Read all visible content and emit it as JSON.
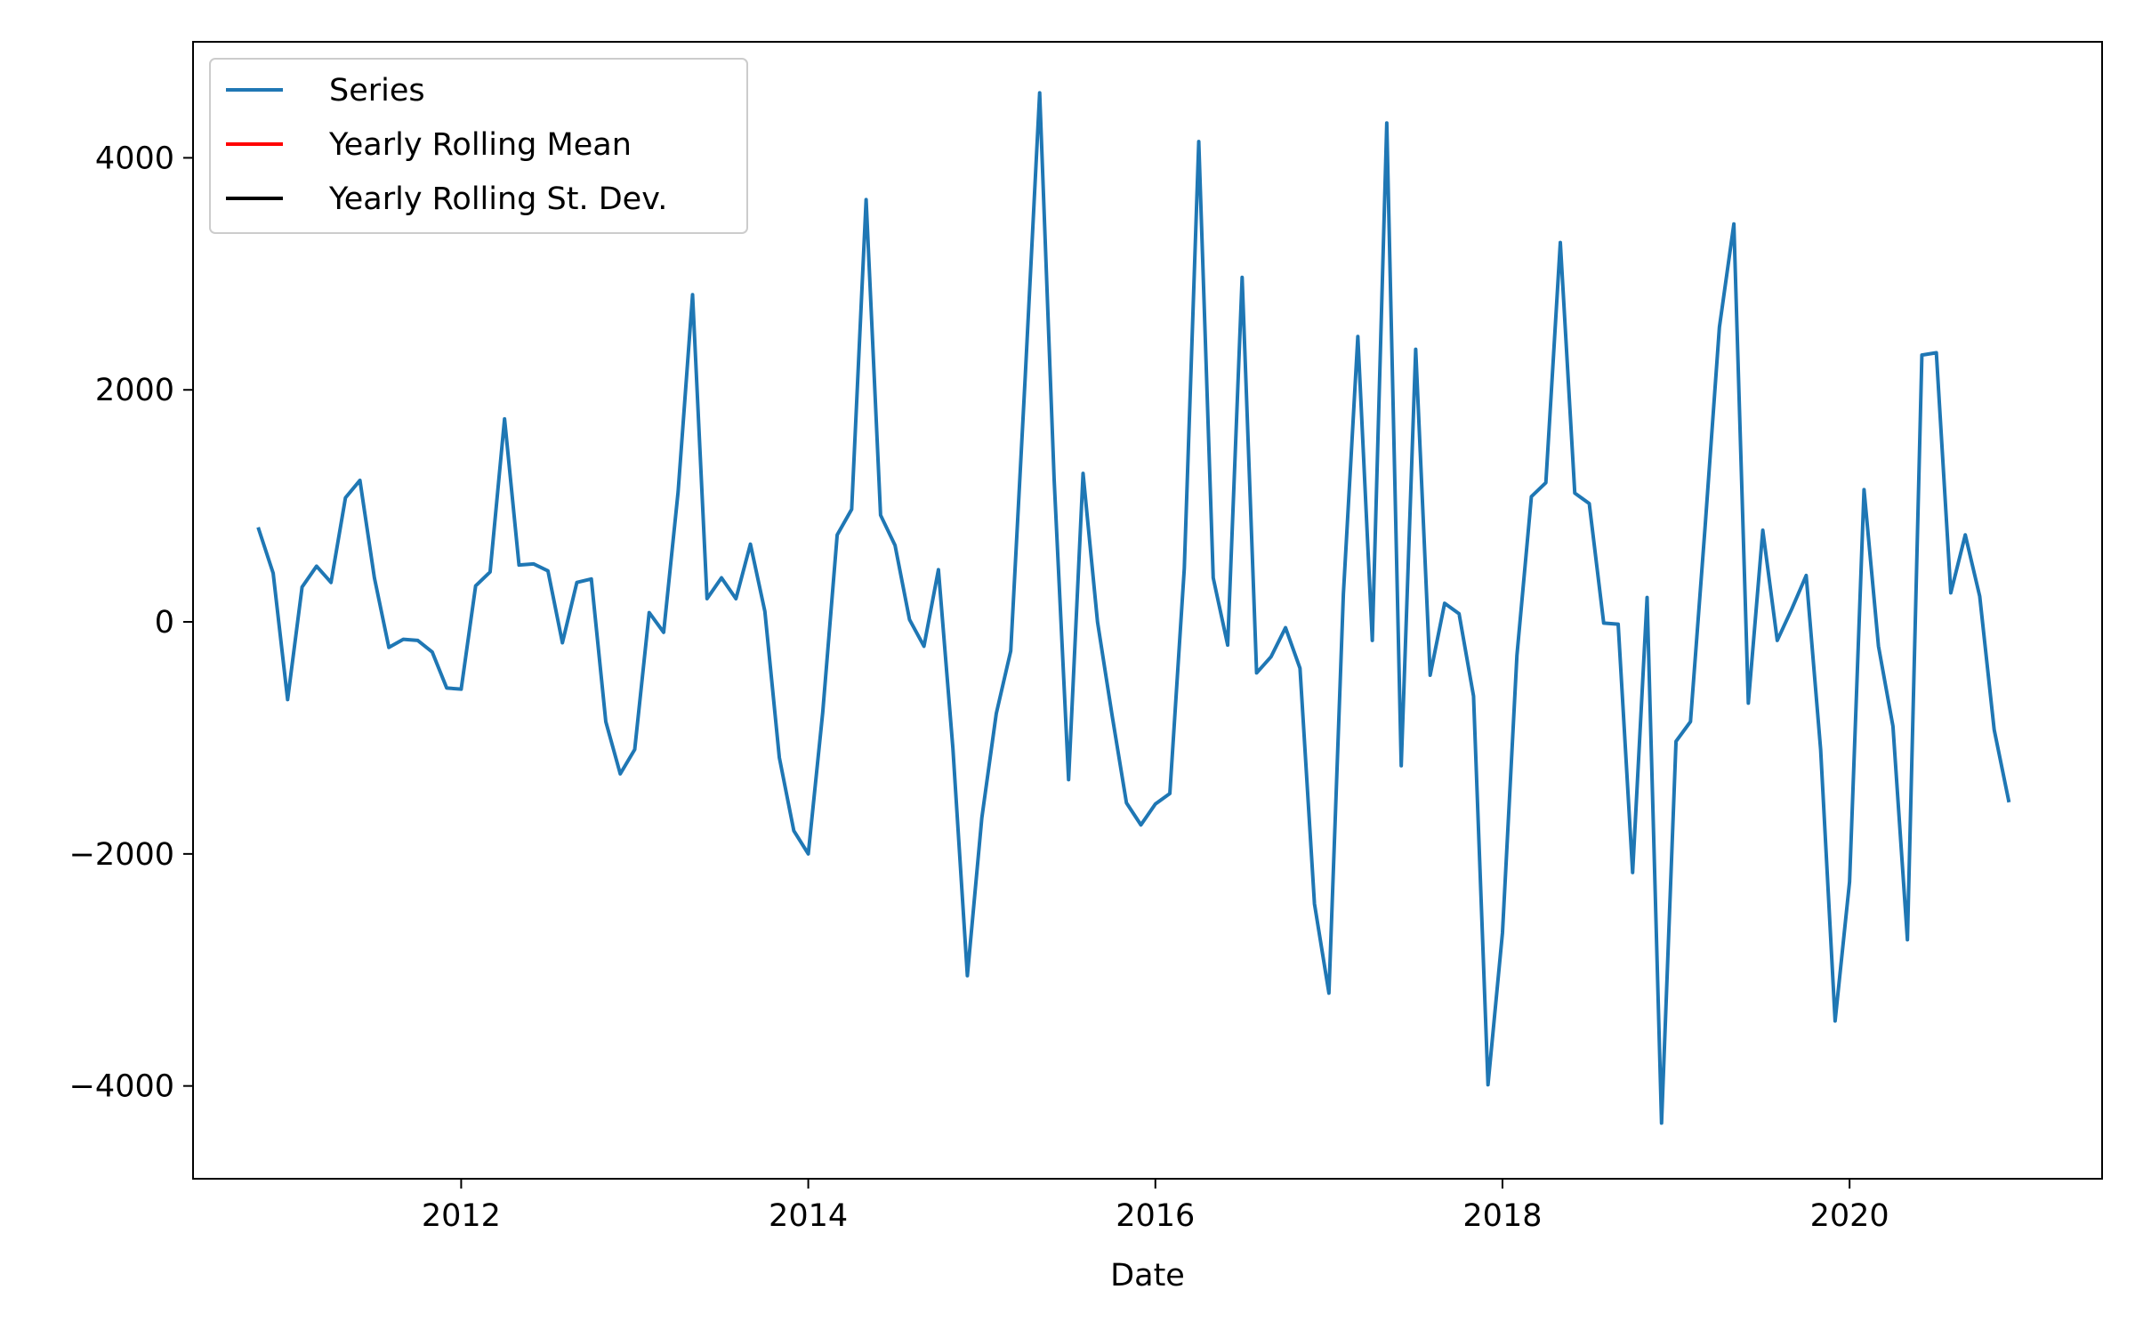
{
  "chart_data": {
    "type": "line",
    "title": "",
    "xlabel": "Date",
    "ylabel": "",
    "xlim": [
      "2010-06-15",
      "2021-06-15"
    ],
    "ylim": [
      -4800,
      5000
    ],
    "x_ticks": [
      "2012",
      "2014",
      "2016",
      "2018",
      "2020"
    ],
    "y_ticks": [
      -4000,
      -2000,
      0,
      2000,
      4000
    ],
    "y_tick_labels": [
      "−4000",
      "−2000",
      "0",
      "2000",
      "4000"
    ],
    "grid": false,
    "legend_position": "upper left",
    "series": [
      {
        "name": "Series",
        "color": "#1f77b4",
        "x": [
          "2010-11",
          "2010-12",
          "2011-01",
          "2011-02",
          "2011-03",
          "2011-04",
          "2011-05",
          "2011-06",
          "2011-07",
          "2011-08",
          "2011-09",
          "2011-10",
          "2011-11",
          "2011-12",
          "2012-01",
          "2012-02",
          "2012-03",
          "2012-04",
          "2012-05",
          "2012-06",
          "2012-07",
          "2012-08",
          "2012-09",
          "2012-10",
          "2012-11",
          "2012-12",
          "2013-01",
          "2013-02",
          "2013-03",
          "2013-04",
          "2013-05",
          "2013-06",
          "2013-07",
          "2013-08",
          "2013-09",
          "2013-10",
          "2013-11",
          "2013-12",
          "2014-01",
          "2014-02",
          "2014-03",
          "2014-04",
          "2014-05",
          "2014-06",
          "2014-07",
          "2014-08",
          "2014-09",
          "2014-10",
          "2014-11",
          "2014-12",
          "2015-01",
          "2015-02",
          "2015-03",
          "2015-04",
          "2015-05",
          "2015-06",
          "2015-07",
          "2015-08",
          "2015-09",
          "2015-10",
          "2015-11",
          "2015-12",
          "2016-01",
          "2016-02",
          "2016-03",
          "2016-04",
          "2016-05",
          "2016-06",
          "2016-07",
          "2016-08",
          "2016-09",
          "2016-10",
          "2016-11",
          "2016-12",
          "2017-01",
          "2017-02",
          "2017-03",
          "2017-04",
          "2017-05",
          "2017-06",
          "2017-07",
          "2017-08",
          "2017-09",
          "2017-10",
          "2017-11",
          "2017-12",
          "2018-01",
          "2018-02",
          "2018-03",
          "2018-04",
          "2018-05",
          "2018-06",
          "2018-07",
          "2018-08",
          "2018-09",
          "2018-10",
          "2018-11",
          "2018-12",
          "2019-01",
          "2019-02",
          "2019-03",
          "2019-04",
          "2019-05",
          "2019-06",
          "2019-07",
          "2019-08",
          "2019-09",
          "2019-10",
          "2019-11",
          "2019-12",
          "2020-01",
          "2020-02",
          "2020-03",
          "2020-04",
          "2020-05",
          "2020-06",
          "2020-07",
          "2020-08",
          "2020-09",
          "2020-10",
          "2020-11",
          "2020-12"
        ],
        "values": [
          800,
          420,
          -670,
          300,
          480,
          340,
          1070,
          1220,
          380,
          -220,
          -150,
          -160,
          -260,
          -570,
          -580,
          310,
          430,
          1750,
          490,
          500,
          440,
          -180,
          340,
          370,
          -860,
          -1310,
          -1100,
          80,
          -90,
          1120,
          2820,
          200,
          380,
          200,
          670,
          90,
          -1170,
          -1800,
          -2000,
          -780,
          750,
          970,
          3640,
          920,
          660,
          20,
          -210,
          450,
          -1090,
          -3050,
          -1690,
          -790,
          -250,
          2110,
          4560,
          1230,
          -1360,
          1280,
          0,
          -800,
          -1560,
          -1750,
          -1570,
          -1480,
          460,
          4140,
          380,
          -200,
          2970,
          -440,
          -300,
          -50,
          -400,
          -2430,
          -3200,
          240,
          2460,
          -160,
          4300,
          -1240,
          2350,
          -460,
          160,
          70,
          -640,
          -3990,
          -2680,
          -290,
          1080,
          1200,
          3270,
          1110,
          1020,
          -10,
          -20,
          -2160,
          210,
          -4320,
          -1030,
          -860,
          800,
          2540,
          3430,
          -700,
          790,
          -160,
          110,
          400,
          -1100,
          -3440,
          -2240,
          1140,
          -210,
          -900,
          -2740,
          2300,
          2320,
          250,
          750,
          220,
          -930,
          -1540
        ]
      },
      {
        "name": "Yearly Rolling Mean",
        "color": "#ff0000",
        "x": [],
        "values": []
      },
      {
        "name": "Yearly Rolling St. Dev.",
        "color": "#000000",
        "x": [],
        "values": []
      }
    ]
  }
}
